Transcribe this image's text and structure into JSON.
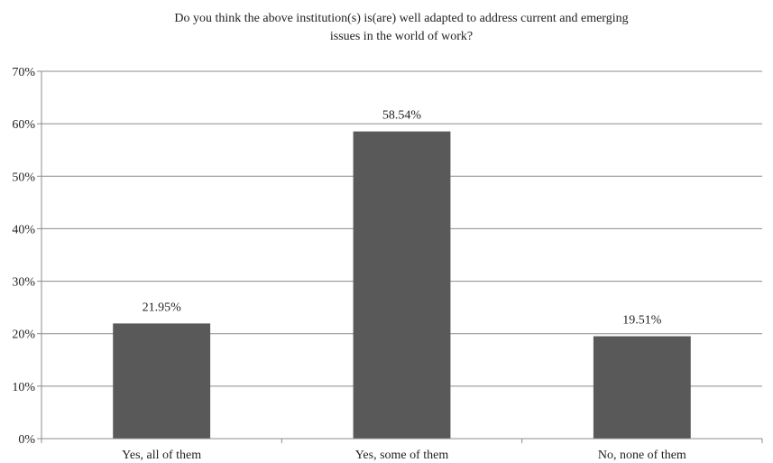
{
  "chart_data": {
    "type": "bar",
    "title_lines": [
      "Do you think the above institution(s) is(are) well adapted to address current and emerging",
      "issues in the world of work?"
    ],
    "categories": [
      "Yes, all of them",
      "Yes, some of them",
      "No, none of them"
    ],
    "values": [
      21.95,
      58.54,
      19.51
    ],
    "value_labels": [
      "21.95%",
      "58.54%",
      "19.51%"
    ],
    "ylim": [
      0,
      70
    ],
    "yticks": [
      0,
      10,
      20,
      30,
      40,
      50,
      60,
      70
    ],
    "ytick_labels": [
      "0%",
      "10%",
      "20%",
      "30%",
      "40%",
      "50%",
      "60%",
      "70%"
    ],
    "grid": true,
    "legend": "none",
    "bar_color": "#595959",
    "grid_color": "#8c8c8c"
  }
}
